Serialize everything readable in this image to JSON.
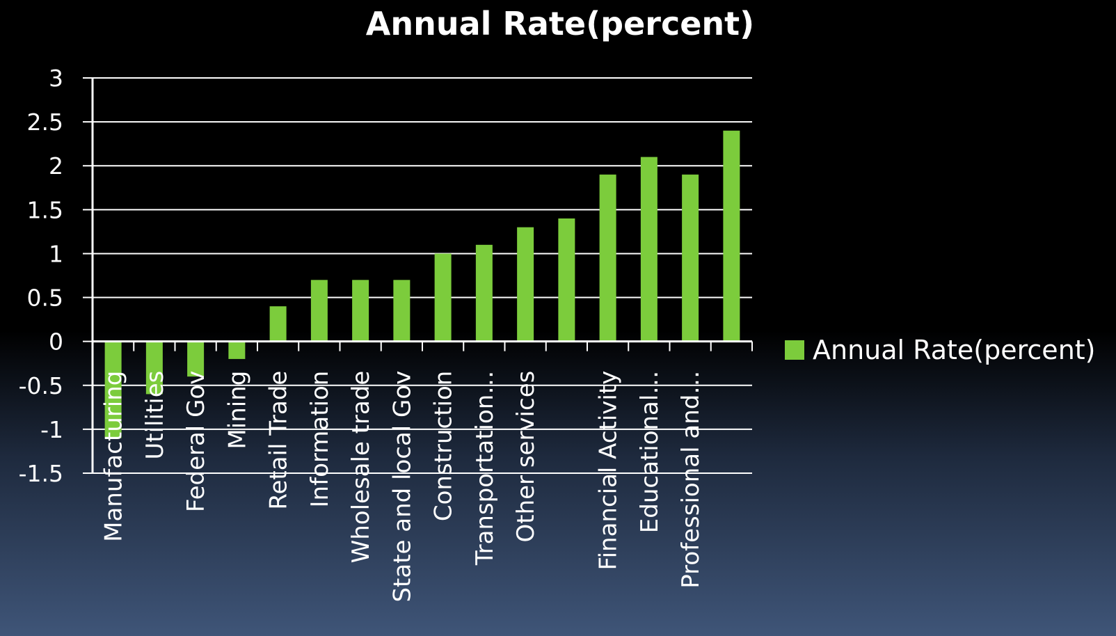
{
  "chart_data": {
    "type": "bar",
    "title": "Annual Rate(percent)",
    "xlabel": "",
    "ylabel": "",
    "ylim": [
      -1.5,
      3
    ],
    "yticks": [
      3,
      2.5,
      2,
      1.5,
      1,
      0.5,
      0,
      -0.5,
      -1,
      -1.5
    ],
    "ytick_labels": [
      "3",
      "2.5",
      "2",
      "1.5",
      "1",
      "0.5",
      "0",
      "-0.5",
      "-1",
      "-1.5"
    ],
    "grid": true,
    "legend_position": "right",
    "bar_color": "#7ccc3c",
    "categories": [
      "Manufacturing",
      "Utilities",
      "Federal Gov",
      "Mining",
      "Retail Trade",
      "Information",
      "Wholesale trade",
      "State and local Gov",
      "Construction",
      "Transportation…",
      "Other services",
      "",
      "Financial Activity",
      "Educational…",
      "Professional and…",
      ""
    ],
    "series": [
      {
        "name": "Annual Rate(percent)",
        "values": [
          -1.1,
          -0.6,
          -0.4,
          -0.2,
          0.4,
          0.7,
          0.7,
          0.7,
          1.0,
          1.1,
          1.3,
          1.4,
          1.9,
          2.1,
          1.9,
          2.4
        ]
      }
    ]
  }
}
